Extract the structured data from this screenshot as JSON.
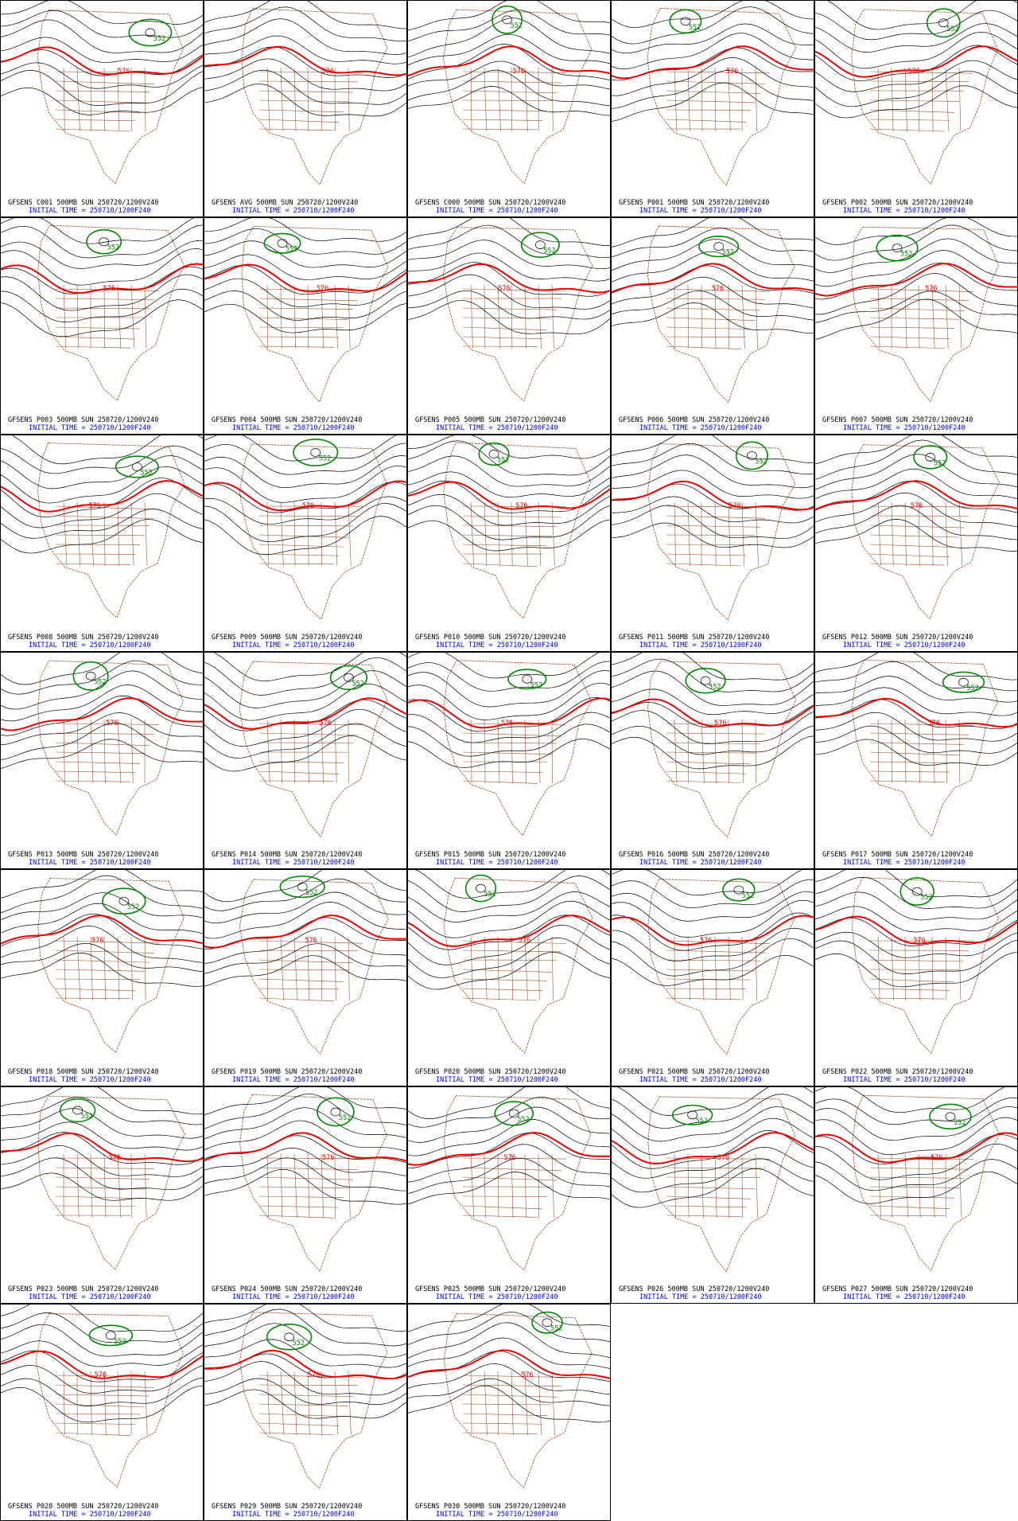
{
  "panels": [
    {
      "title": "GFSENS C001 500MB SUN 250720/1200V240",
      "initial_time": "INITIAL TIME = 250710/1200F240",
      "contour_labels": [
        "576",
        "552"
      ]
    },
    {
      "title": "GFSENS AVG 500MB SUN 250720/1200V240",
      "initial_time": "INITIAL TIME = 250710/1200F240",
      "contour_labels": [
        "576"
      ]
    },
    {
      "title": "GFSENS C000 500MB SUN 250720/1200V240",
      "initial_time": "INITIAL TIME = 250710/1200F240",
      "contour_labels": [
        "576",
        "552"
      ]
    },
    {
      "title": "GFSENS P001 500MB SUN 250720/1200V240",
      "initial_time": "INITIAL TIME = 250710/1200F240",
      "contour_labels": [
        "576",
        "552"
      ]
    },
    {
      "title": "GFSENS P002 500MB SUN 250720/1200V240",
      "initial_time": "INITIAL TIME = 250710/1200F240",
      "contour_labels": [
        "576",
        "552"
      ]
    },
    {
      "title": "GFSENS P003 500MB SUN 250720/1200V240",
      "initial_time": "INITIAL TIME = 250710/1200F240",
      "contour_labels": [
        "576",
        "552"
      ]
    },
    {
      "title": "GFSENS P004 500MB SUN 250720/1200V240",
      "initial_time": "INITIAL TIME = 250710/1200F240",
      "contour_labels": [
        "576",
        "552"
      ]
    },
    {
      "title": "GFSENS P005 500MB SUN 250720/1200V240",
      "initial_time": "INITIAL TIME = 250710/1200F240",
      "contour_labels": [
        "576",
        "552"
      ]
    },
    {
      "title": "GFSENS P006 500MB SUN 250720/1200V240",
      "initial_time": "INITIAL TIME = 250710/1200F240",
      "contour_labels": [
        "576",
        "552"
      ]
    },
    {
      "title": "GFSENS P007 500MB SUN 250720/1200V240",
      "initial_time": "INITIAL TIME = 250710/1200F240",
      "contour_labels": [
        "576",
        "552"
      ]
    },
    {
      "title": "GFSENS P008 500MB SUN 250720/1200V240",
      "initial_time": "INITIAL TIME = 250710/1200F240",
      "contour_labels": [
        "576",
        "552"
      ]
    },
    {
      "title": "GFSENS P009 500MB SUN 250720/1200V240",
      "initial_time": "INITIAL TIME = 250710/1200F240",
      "contour_labels": [
        "576",
        "552"
      ]
    },
    {
      "title": "GFSENS P010 500MB SUN 250720/1200V240",
      "initial_time": "INITIAL TIME = 250710/1200F240",
      "contour_labels": [
        "576",
        "552"
      ]
    },
    {
      "title": "GFSENS P011 500MB SUN 250720/1200V240",
      "initial_time": "INITIAL TIME = 250710/1200F240",
      "contour_labels": [
        "576",
        "552"
      ]
    },
    {
      "title": "GFSENS P012 500MB SUN 250720/1200V240",
      "initial_time": "INITIAL TIME = 250710/1200F240",
      "contour_labels": [
        "576",
        "552"
      ]
    },
    {
      "title": "GFSENS P013 500MB SUN 250720/1200V240",
      "initial_time": "INITIAL TIME = 250710/1200F240",
      "contour_labels": [
        "576",
        "552"
      ]
    },
    {
      "title": "GFSENS P014 500MB SUN 250720/1200V240",
      "initial_time": "INITIAL TIME = 250710/1200F240",
      "contour_labels": [
        "576",
        "552"
      ]
    },
    {
      "title": "GFSENS P015 500MB SUN 250720/1200V240",
      "initial_time": "INITIAL TIME = 250710/1200F240",
      "contour_labels": [
        "576",
        "552"
      ]
    },
    {
      "title": "GFSENS P016 500MB SUN 250720/1200V240",
      "initial_time": "INITIAL TIME = 250710/1200F240",
      "contour_labels": [
        "576",
        "552"
      ]
    },
    {
      "title": "GFSENS P017 500MB SUN 250720/1200V240",
      "initial_time": "INITIAL TIME = 250710/1200F240",
      "contour_labels": [
        "576",
        "552"
      ]
    },
    {
      "title": "GFSENS P018 500MB SUN 250720/1200V240",
      "initial_time": "INITIAL TIME = 250710/1200F240",
      "contour_labels": [
        "576",
        "552"
      ]
    },
    {
      "title": "GFSENS P019 500MB SUN 250720/1200V240",
      "initial_time": "INITIAL TIME = 250710/1200F240",
      "contour_labels": [
        "576",
        "552"
      ]
    },
    {
      "title": "GFSENS P020 500MB SUN 250720/1200V240",
      "initial_time": "INITIAL TIME = 250710/1200F240",
      "contour_labels": [
        "576",
        "552"
      ]
    },
    {
      "title": "GFSENS P021 500MB SUN 250720/1200V240",
      "initial_time": "INITIAL TIME = 250710/1200F240",
      "contour_labels": [
        "576",
        "552"
      ]
    },
    {
      "title": "GFSENS P022 500MB SUN 250720/1200V240",
      "initial_time": "INITIAL TIME = 250710/1200F240",
      "contour_labels": [
        "576",
        "552"
      ]
    },
    {
      "title": "GFSENS P023 500MB SUN 250720/1200V240",
      "initial_time": "INITIAL TIME = 250710/1200F240",
      "contour_labels": [
        "576",
        "552"
      ]
    },
    {
      "title": "GFSENS P024 500MB SUN 250720/1200V240",
      "initial_time": "INITIAL TIME = 250710/1200F240",
      "contour_labels": [
        "576",
        "552"
      ]
    },
    {
      "title": "GFSENS P025 500MB SUN 250720/1200V240",
      "initial_time": "INITIAL TIME = 250710/1200F240",
      "contour_labels": [
        "576",
        "552"
      ]
    },
    {
      "title": "GFSENS P026 500MB SUN 250720/1200V240",
      "initial_time": "INITIAL TIME = 250710/1200F240",
      "contour_labels": [
        "576",
        "552"
      ]
    },
    {
      "title": "GFSENS P027 500MB SUN 250720/1200V240",
      "initial_time": "INITIAL TIME = 250710/1200F240",
      "contour_labels": [
        "576",
        "552"
      ]
    },
    {
      "title": "GFSENS P028 500MB SUN 250720/1200V240",
      "initial_time": "INITIAL TIME = 250710/1200F240",
      "contour_labels": [
        "576",
        "552"
      ]
    },
    {
      "title": "GFSENS P029 500MB SUN 250720/1200V240",
      "initial_time": "INITIAL TIME = 250710/1200F240",
      "contour_labels": [
        "576",
        "552"
      ]
    },
    {
      "title": "GFSENS P030 500MB SUN 250720/1200V240",
      "initial_time": "INITIAL TIME = 250710/1200F240",
      "contour_labels": [
        "576",
        "552"
      ]
    }
  ]
}
